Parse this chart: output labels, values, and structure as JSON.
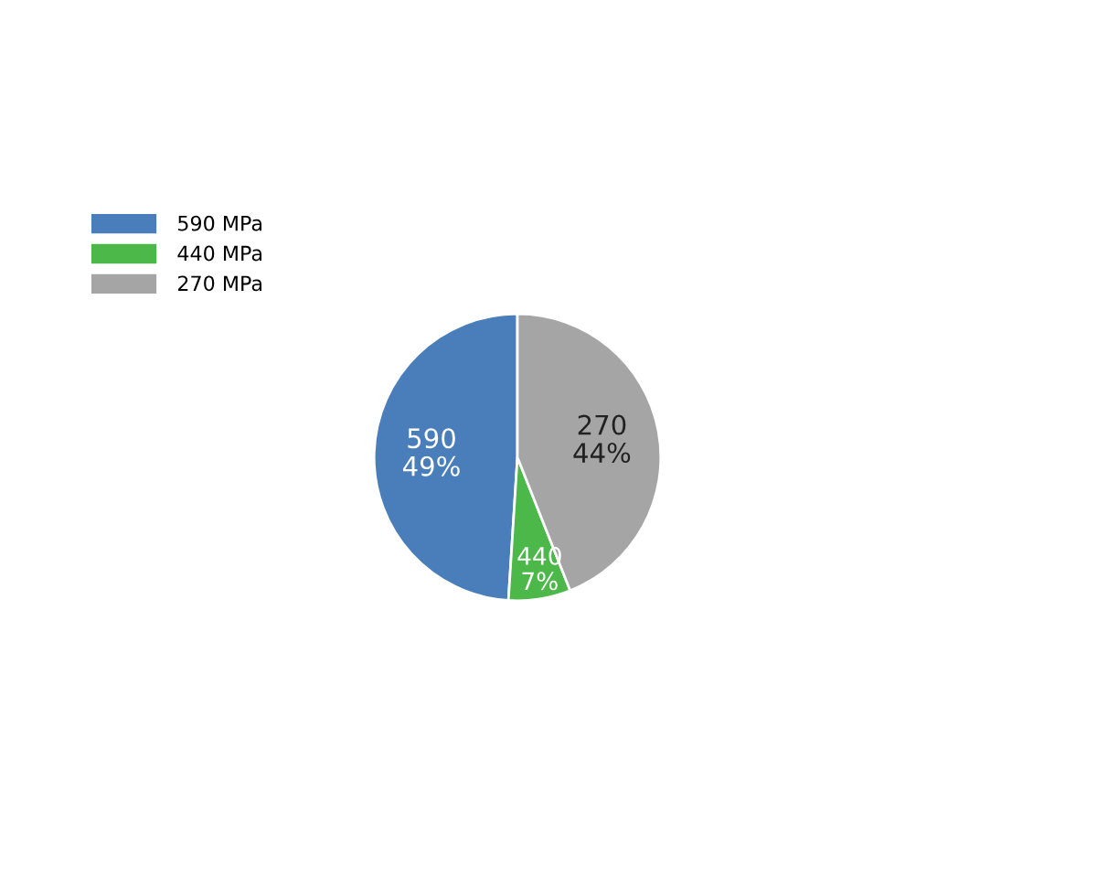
{
  "chart_data": {
    "type": "pie",
    "categories": [
      "590 MPa",
      "440 MPa",
      "270 MPa"
    ],
    "values": [
      49,
      7,
      44
    ],
    "colors": [
      "#4a7ebb",
      "#4cb849",
      "#a5a5a5"
    ],
    "value_labels": [
      "590\n49%",
      "440\n7%",
      "270\n44%"
    ],
    "legend": "top left"
  }
}
